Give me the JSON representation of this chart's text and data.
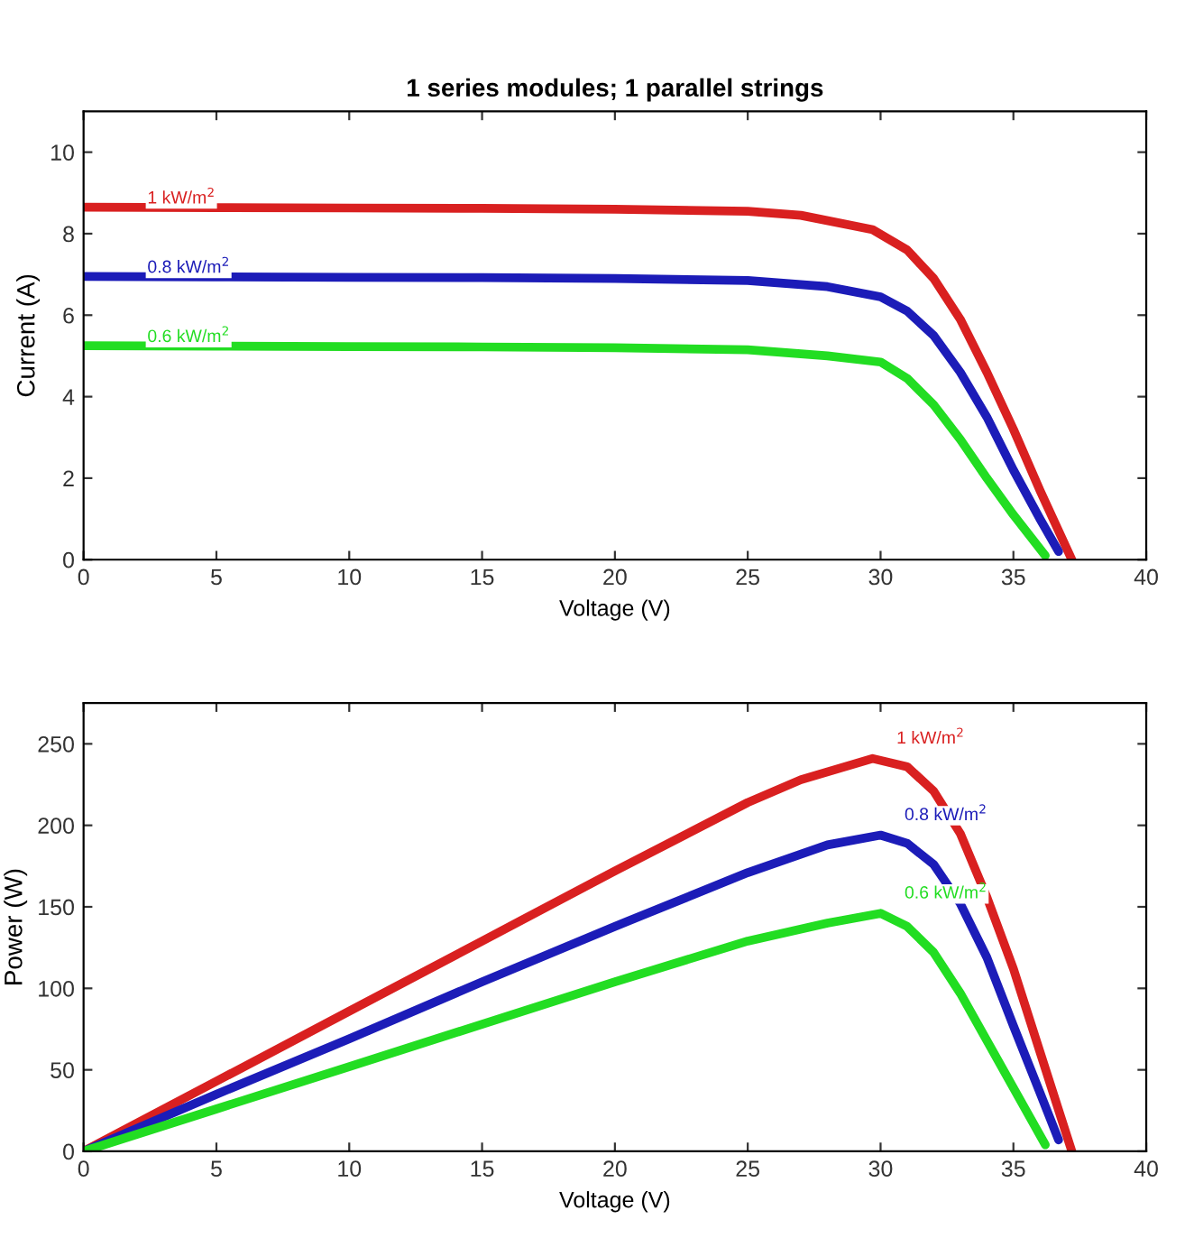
{
  "chart_data": [
    {
      "type": "line",
      "title": "1 series modules; 1 parallel strings",
      "xlabel": "Voltage (V)",
      "ylabel": "Current (A)",
      "xlim": [
        0,
        40
      ],
      "xticks": [
        0,
        5,
        10,
        15,
        20,
        25,
        30,
        35,
        40
      ],
      "ylim": [
        0,
        11
      ],
      "yticks": [
        0,
        2,
        4,
        6,
        8,
        10
      ],
      "grid": false,
      "series": [
        {
          "name": "1 kW/m$^{2}$",
          "color": "#d92020",
          "x": [
            0,
            5,
            10,
            15,
            20,
            25,
            27,
            29.7,
            31,
            32,
            33,
            34,
            35,
            36,
            37.2
          ],
          "values": [
            8.65,
            8.64,
            8.63,
            8.62,
            8.6,
            8.55,
            8.45,
            8.1,
            7.6,
            6.9,
            5.9,
            4.6,
            3.2,
            1.7,
            0
          ]
        },
        {
          "name": "0.8 kW/m$^{2}$",
          "color": "#1c1cb8",
          "x": [
            0,
            5,
            10,
            15,
            20,
            25,
            28,
            30,
            31,
            32,
            33,
            34,
            35,
            36,
            36.7
          ],
          "values": [
            6.95,
            6.94,
            6.93,
            6.92,
            6.9,
            6.85,
            6.7,
            6.45,
            6.1,
            5.5,
            4.6,
            3.5,
            2.2,
            1.0,
            0.2
          ]
        },
        {
          "name": "0.6 kW/m$^{2}$",
          "color": "#22dd22",
          "x": [
            0,
            5,
            10,
            15,
            20,
            25,
            28,
            30,
            31,
            32,
            33,
            34,
            35,
            36.2
          ],
          "values": [
            5.25,
            5.24,
            5.23,
            5.22,
            5.2,
            5.15,
            5.0,
            4.85,
            4.45,
            3.8,
            2.95,
            2.0,
            1.1,
            0.1
          ]
        }
      ]
    },
    {
      "type": "line",
      "xlabel": "Voltage (V)",
      "ylabel": "Power (W)",
      "xlim": [
        0,
        40
      ],
      "xticks": [
        0,
        5,
        10,
        15,
        20,
        25,
        30,
        35,
        40
      ],
      "ylim": [
        0,
        275
      ],
      "yticks": [
        0,
        50,
        100,
        150,
        200,
        250
      ],
      "grid": false,
      "series": [
        {
          "name": "1 kW/m$^{2}$",
          "color": "#d92020",
          "x": [
            0,
            5,
            10,
            15,
            20,
            25,
            27,
            29.7,
            31,
            32,
            33,
            34,
            35,
            36,
            37.2
          ],
          "values": [
            0,
            43,
            86,
            129,
            172,
            214,
            228,
            241,
            236,
            221,
            195,
            156,
            112,
            61,
            0
          ]
        },
        {
          "name": "0.8 kW/m$^{2}$",
          "color": "#1c1cb8",
          "x": [
            0,
            5,
            10,
            15,
            20,
            25,
            28,
            30,
            31,
            32,
            33,
            34,
            35,
            36,
            36.7
          ],
          "values": [
            0,
            35,
            69,
            104,
            138,
            171,
            188,
            194,
            189,
            176,
            152,
            119,
            77,
            36,
            7
          ]
        },
        {
          "name": "0.6 kW/m$^{2}$",
          "color": "#22dd22",
          "x": [
            0,
            5,
            10,
            15,
            20,
            25,
            28,
            30,
            31,
            32,
            33,
            34,
            35,
            36.2
          ],
          "values": [
            0,
            26,
            52,
            78,
            104,
            129,
            140,
            146,
            138,
            122,
            97,
            68,
            39,
            4
          ]
        }
      ]
    }
  ]
}
